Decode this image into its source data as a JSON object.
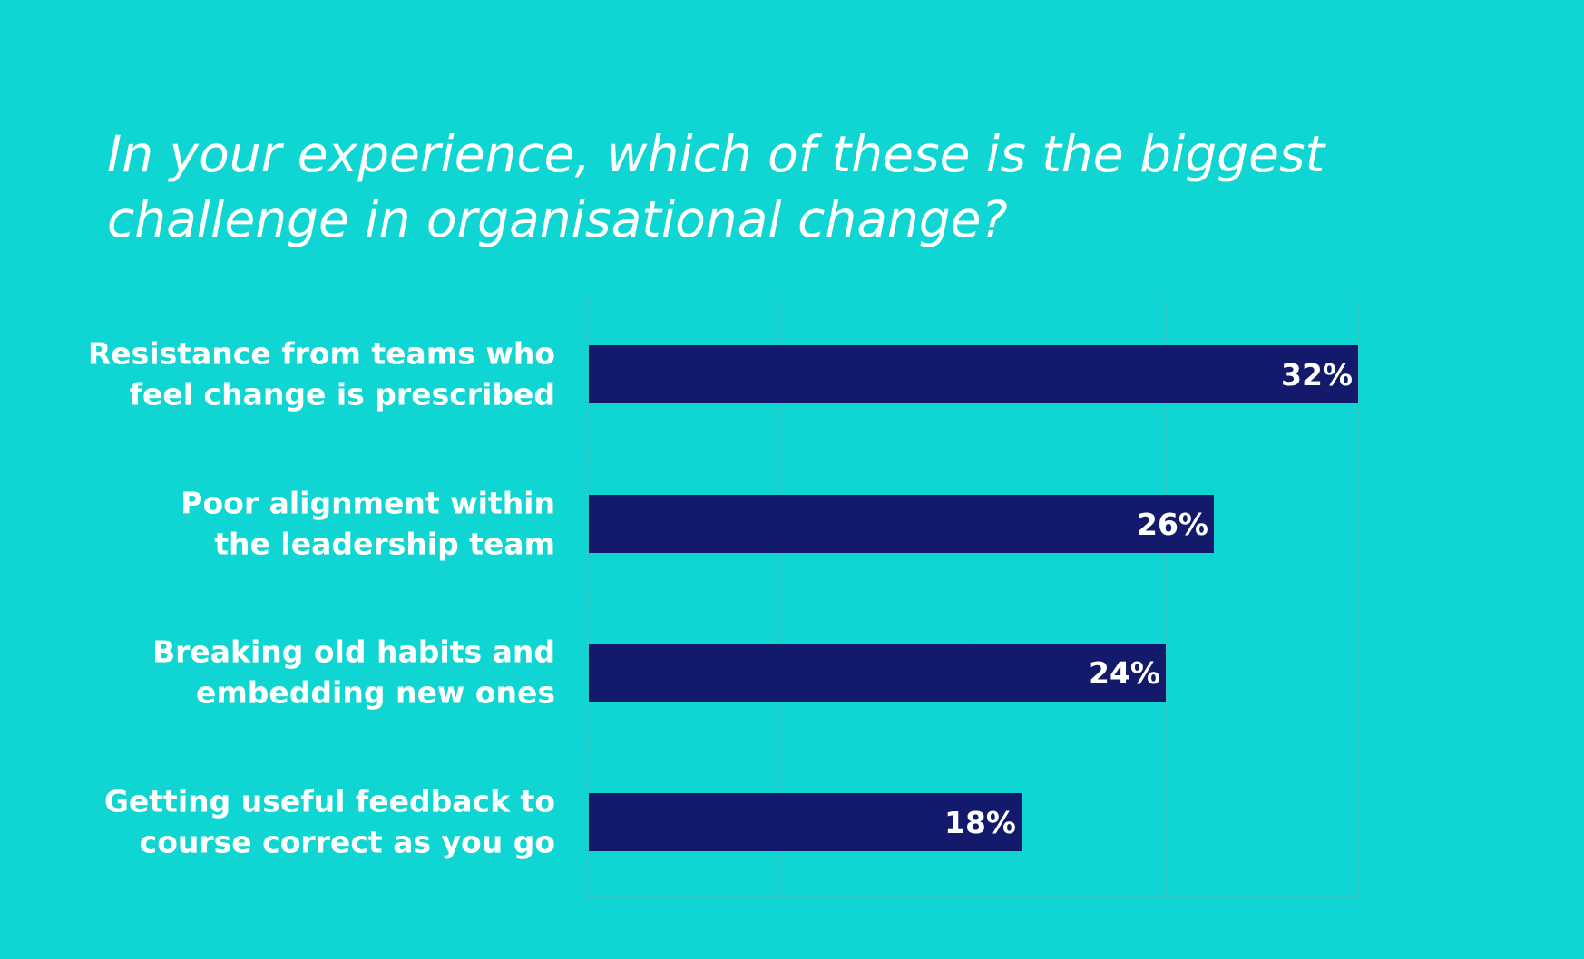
{
  "colors": {
    "background": "#0fd6d3",
    "bar": "#131a6b",
    "text": "#ffffff",
    "grid": "#35c4c2"
  },
  "chart_data": {
    "type": "bar",
    "orientation": "horizontal",
    "title": "In your experience, which of these is the biggest\nchallenge in organisational change?",
    "categories": [
      [
        "Resistance from teams who",
        "feel change is prescribed"
      ],
      [
        "Poor alignment within",
        "the leadership team"
      ],
      [
        "Breaking old habits and",
        "embedding new ones"
      ],
      [
        "Getting useful feedback to",
        "course correct as you go"
      ]
    ],
    "values": [
      32,
      26,
      24,
      18
    ],
    "data_labels": [
      "32%",
      "26%",
      "24%",
      "18%"
    ],
    "xlim": [
      0,
      32
    ],
    "gridlines": [
      0,
      8,
      16,
      24,
      32
    ],
    "grid": true,
    "xlabel": "",
    "ylabel": ""
  }
}
